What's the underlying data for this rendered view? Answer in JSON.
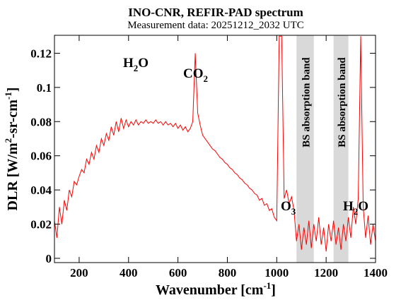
{
  "chart_data": {
    "type": "line",
    "title": "INO-CNR, REFIR-PAD spectrum",
    "subtitle": "Measurement data: 20251212_2032 UTC",
    "x_label": [
      "Wavenumber [cm",
      "-1",
      "]"
    ],
    "y_label": [
      "DLR [W/m",
      "2",
      "-sr-cm",
      "-1",
      "]"
    ],
    "xlim": [
      100,
      1400
    ],
    "ylim": [
      -0.0025,
      0.1305
    ],
    "xticks": [
      200,
      400,
      600,
      800,
      1000,
      1200,
      1400
    ],
    "yticks": [
      0,
      0.02,
      0.04,
      0.06,
      0.08,
      0.1,
      0.12
    ],
    "bands": [
      {
        "xlim": [
          1080,
          1150
        ],
        "label": "BS absorption band",
        "color": "#d9d9d9"
      },
      {
        "xlim": [
          1230,
          1290
        ],
        "label": "BS absorption band",
        "color": "#d9d9d9"
      }
    ],
    "annotations": [
      [
        "H",
        "2",
        "O"
      ],
      [
        "CO",
        "2",
        ""
      ],
      [
        "O",
        "3",
        ""
      ],
      [
        "H",
        "2",
        "O"
      ]
    ],
    "series": [
      {
        "name": "DLR",
        "color": "#ff0000",
        "x": [
          100,
          110,
          120,
          130,
          140,
          150,
          160,
          170,
          180,
          190,
          200,
          210,
          220,
          230,
          240,
          250,
          260,
          270,
          280,
          290,
          300,
          310,
          320,
          330,
          340,
          350,
          360,
          370,
          380,
          390,
          400,
          410,
          420,
          430,
          440,
          450,
          460,
          470,
          480,
          490,
          500,
          510,
          520,
          530,
          540,
          550,
          560,
          570,
          580,
          590,
          600,
          610,
          620,
          630,
          640,
          650,
          660,
          670,
          680,
          690,
          700,
          710,
          720,
          730,
          740,
          750,
          760,
          770,
          780,
          790,
          800,
          810,
          820,
          830,
          840,
          850,
          860,
          870,
          880,
          890,
          900,
          910,
          920,
          930,
          940,
          950,
          960,
          970,
          980,
          990,
          1000,
          1010,
          1020,
          1030,
          1040,
          1050,
          1060,
          1070,
          1080,
          1090,
          1100,
          1110,
          1120,
          1130,
          1140,
          1150,
          1160,
          1170,
          1180,
          1190,
          1200,
          1210,
          1220,
          1230,
          1240,
          1250,
          1260,
          1270,
          1280,
          1290,
          1300,
          1310,
          1320,
          1330,
          1340,
          1350,
          1360,
          1370,
          1380,
          1390,
          1400
        ],
        "values": [
          0.022,
          0.012,
          0.03,
          0.02,
          0.034,
          0.028,
          0.04,
          0.036,
          0.045,
          0.043,
          0.048,
          0.052,
          0.05,
          0.058,
          0.055,
          0.062,
          0.058,
          0.066,
          0.062,
          0.07,
          0.066,
          0.073,
          0.069,
          0.077,
          0.072,
          0.08,
          0.074,
          0.082,
          0.076,
          0.081,
          0.077,
          0.08,
          0.078,
          0.081,
          0.078,
          0.08,
          0.079,
          0.081,
          0.079,
          0.08,
          0.079,
          0.081,
          0.079,
          0.08,
          0.078,
          0.08,
          0.078,
          0.079,
          0.077,
          0.079,
          0.076,
          0.078,
          0.075,
          0.077,
          0.074,
          0.076,
          0.08,
          0.12,
          0.085,
          0.078,
          0.072,
          0.07,
          0.068,
          0.066,
          0.064,
          0.063,
          0.061,
          0.059,
          0.058,
          0.056,
          0.055,
          0.053,
          0.052,
          0.05,
          0.049,
          0.047,
          0.046,
          0.044,
          0.043,
          0.041,
          0.04,
          0.038,
          0.037,
          0.034,
          0.035,
          0.031,
          0.032,
          0.028,
          0.029,
          0.024,
          0.022,
          0.13,
          0.13,
          0.035,
          0.04,
          0.032,
          0.036,
          0.028,
          0.01,
          0.02,
          0.005,
          0.018,
          0.008,
          0.022,
          0.006,
          0.02,
          0.01,
          0.024,
          0.008,
          0.018,
          0.004,
          0.02,
          0.01,
          0.022,
          0.008,
          0.018,
          0.005,
          0.02,
          0.01,
          0.024,
          0.012,
          0.03,
          0.02,
          0.035,
          0.13,
          0.03,
          0.012,
          0.025,
          0.008,
          0.02,
          0.01
        ]
      }
    ]
  }
}
